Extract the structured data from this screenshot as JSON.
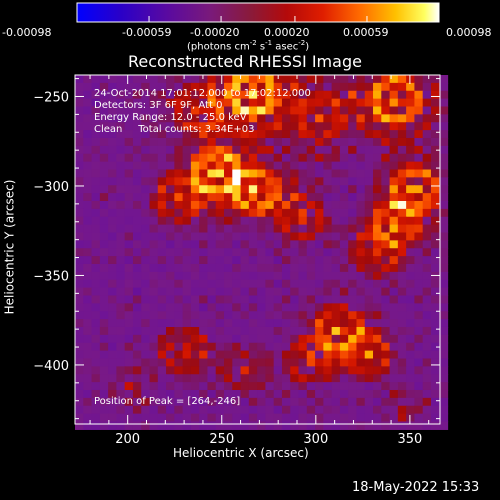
{
  "colorbar": {
    "ticks": [
      "-0.00098",
      "-0.00059",
      "-0.00020",
      "0.00020",
      "0.00059",
      "0.00098"
    ],
    "units_main": "(photons cm",
    "units_exp1": "-2",
    "units_mid": " s",
    "units_exp2": "-1",
    "units_tail": " asec",
    "units_exp3": "-2",
    "units_close": ")"
  },
  "chart_data": {
    "type": "heatmap",
    "title": "Reconstructed RHESSI Image",
    "xlabel": "Heliocentric X (arcsec)",
    "ylabel": "Heliocentric Y (arcsec)",
    "xlim": [
      172,
      366
    ],
    "ylim": [
      -433,
      -238
    ],
    "xticks": [
      200,
      250,
      300,
      350
    ],
    "yticks": [
      -250,
      -300,
      -350,
      -400
    ],
    "xtick_labels": [
      "200",
      "250",
      "300",
      "350"
    ],
    "ytick_labels": [
      "−250",
      "−300",
      "−350",
      "−400"
    ],
    "colormap": "rainbow-hot",
    "value_range": [
      -0.00098,
      0.00098
    ],
    "annotations": [
      "24-Oct-2014 17:01:12.000 to 17:02:12.000",
      "Detectors: 3F 6F 9F, Att 0",
      "Energy Range: 12.0 - 25.0 keV",
      "Clean     Total counts: 3.34E+03"
    ],
    "peak_label": "Position of Peak = [264,-246]",
    "peak": [
      264,
      -246
    ]
  },
  "footer": {
    "date": "18-May-2022 15:33"
  }
}
